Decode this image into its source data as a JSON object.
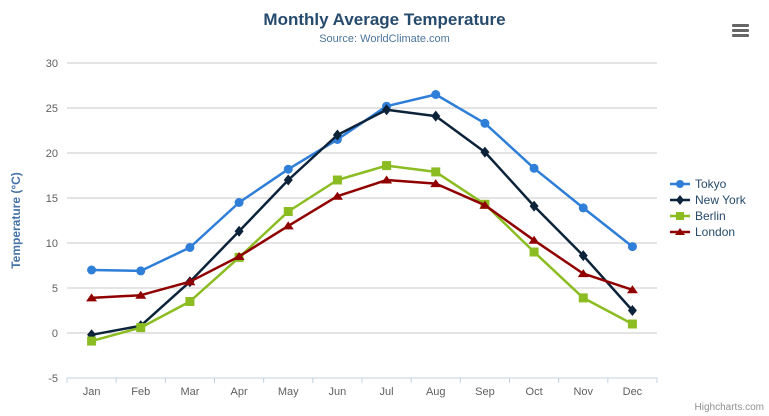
{
  "chart_data": {
    "type": "line",
    "title": "Monthly Average Temperature",
    "subtitle": "Source: WorldClimate.com",
    "categories": [
      "Jan",
      "Feb",
      "Mar",
      "Apr",
      "May",
      "Jun",
      "Jul",
      "Aug",
      "Sep",
      "Oct",
      "Nov",
      "Dec"
    ],
    "xlabel": "",
    "ylabel": "Temperature (°C)",
    "ylim": [
      -5,
      30
    ],
    "ytick_interval": 5,
    "grid": true,
    "legend_position": "right",
    "series": [
      {
        "name": "Tokyo",
        "marker": "circle",
        "color": "#2f7ed8",
        "values": [
          7.0,
          6.9,
          9.5,
          14.5,
          18.2,
          21.5,
          25.2,
          26.5,
          23.3,
          18.3,
          13.9,
          9.6
        ]
      },
      {
        "name": "New York",
        "marker": "diamond",
        "color": "#0d233a",
        "values": [
          -0.2,
          0.8,
          5.7,
          11.3,
          17.0,
          22.0,
          24.8,
          24.1,
          20.1,
          14.1,
          8.6,
          2.5
        ]
      },
      {
        "name": "Berlin",
        "marker": "square",
        "color": "#8bbc21",
        "values": [
          -0.9,
          0.6,
          3.5,
          8.4,
          13.5,
          17.0,
          18.6,
          17.9,
          14.3,
          9.0,
          3.9,
          1.0
        ]
      },
      {
        "name": "London",
        "marker": "triangle",
        "color": "#910000",
        "values": [
          3.9,
          4.2,
          5.7,
          8.5,
          11.9,
          15.2,
          17.0,
          16.6,
          14.2,
          10.3,
          6.6,
          4.8
        ]
      }
    ]
  },
  "credits": {
    "label": "Highcharts.com"
  },
  "theme": {
    "title_color": "#274b6d",
    "subtitle_color": "#4d759e",
    "axis_label_color": "#606060",
    "yaxis_title_color": "#4572a7",
    "grid_color": "#c8c8c8",
    "xaxis_line_color": "#c0d0e0",
    "legend_text_color": "#274b6d",
    "credits_color": "#909090",
    "menu_icon_color": "#666666"
  }
}
